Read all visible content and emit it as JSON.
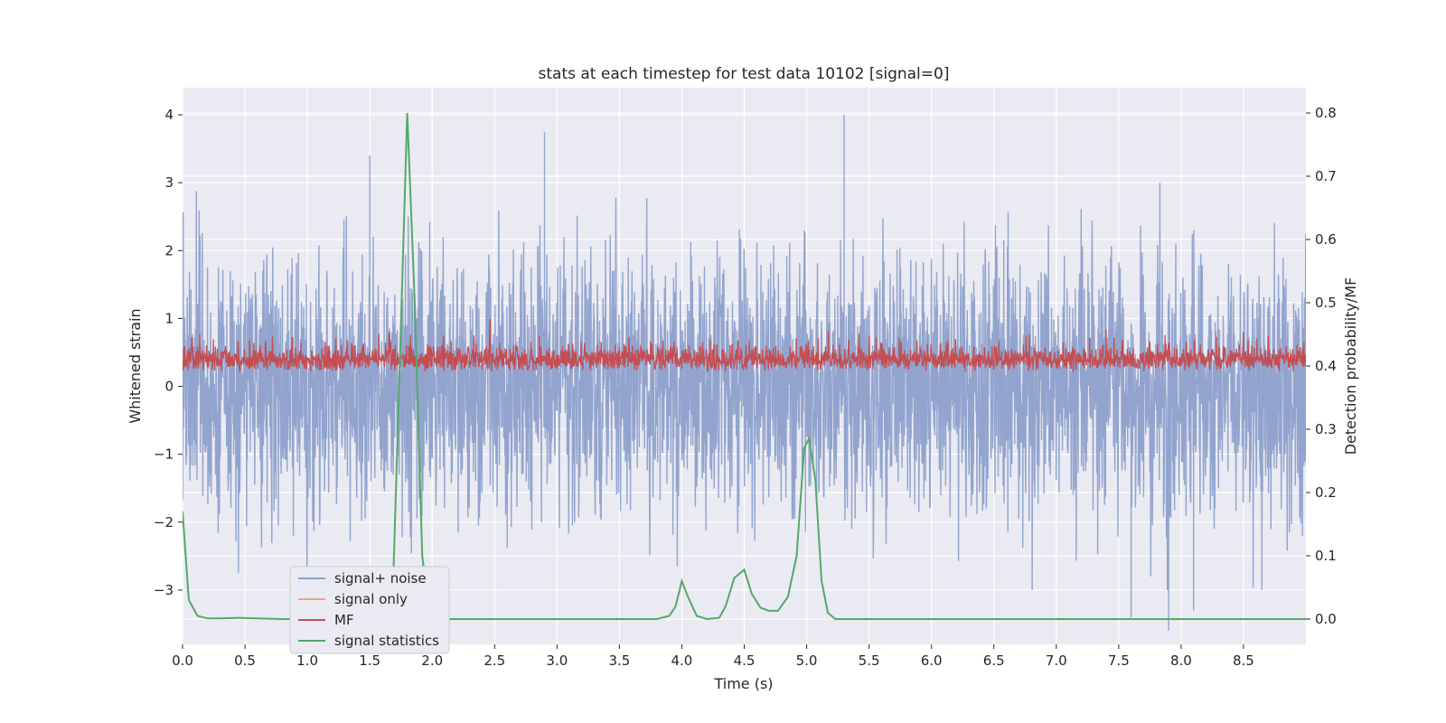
{
  "chart_data": {
    "type": "line",
    "title": "stats at each timestep for test data 10102 [signal=0]",
    "xlabel": "Time (s)",
    "ylabel_left": "Whitened strain",
    "ylabel_right": "Detection probability/MF",
    "xlim": [
      0.0,
      9.0
    ],
    "ylim_left": [
      -3.8,
      4.4
    ],
    "ylim_right": [
      -0.04,
      0.84
    ],
    "x_ticks": [
      "0.0",
      "0.5",
      "1.0",
      "1.5",
      "2.0",
      "2.5",
      "3.0",
      "3.5",
      "4.0",
      "4.5",
      "5.0",
      "5.5",
      "6.0",
      "6.5",
      "7.0",
      "7.5",
      "8.0",
      "8.5"
    ],
    "y_ticks_left": [
      "4",
      "3",
      "2",
      "1",
      "0",
      "−1",
      "−2",
      "−3"
    ],
    "y_ticks_right": [
      "0.8",
      "0.7",
      "0.6",
      "0.5",
      "0.4",
      "0.3",
      "0.2",
      "0.1",
      "0.0"
    ],
    "grid": true,
    "legend_placement": "lower-left",
    "series": [
      {
        "name": "signal+ noise",
        "axis": "left",
        "color": "#8da0cb",
        "style": "dense noise, roughly within ±2.5 with peaks near 4.0 and −3.5",
        "peaks": [
          [
            1.5,
            3.4
          ],
          [
            2.9,
            3.75
          ],
          [
            5.3,
            4.0
          ],
          [
            7.9,
            -3.6
          ],
          [
            8.1,
            -3.3
          ],
          [
            7.6,
            -3.4
          ]
        ]
      },
      {
        "name": "signal only",
        "axis": "left",
        "color": "#e8a58a",
        "values": []
      },
      {
        "name": "MF",
        "axis": "right",
        "color": "#c44e52",
        "style": "noise band mostly between 0.39 and 0.44, occasional peaks up to ~0.47"
      },
      {
        "name": "signal statistics",
        "axis": "right",
        "color": "#55a868",
        "x": [
          0.0,
          0.05,
          0.12,
          0.2,
          0.3,
          0.45,
          0.6,
          0.8,
          1.0,
          1.2,
          1.4,
          1.6,
          1.68,
          1.74,
          1.8,
          1.86,
          1.92,
          1.98,
          2.05,
          2.2,
          2.5,
          3.0,
          3.5,
          3.8,
          3.9,
          3.95,
          4.0,
          4.05,
          4.12,
          4.2,
          4.3,
          4.35,
          4.42,
          4.5,
          4.56,
          4.63,
          4.7,
          4.77,
          4.85,
          4.92,
          4.98,
          5.02,
          5.07,
          5.12,
          5.17,
          5.23,
          5.3,
          5.5,
          6.0,
          7.0,
          8.0,
          9.0
        ],
        "y": [
          0.17,
          0.03,
          0.005,
          0.001,
          0.001,
          0.002,
          0.001,
          0.0,
          0.0,
          0.0,
          0.0,
          0.0,
          0.01,
          0.4,
          0.8,
          0.5,
          0.1,
          0.005,
          0.0,
          0.0,
          0.0,
          0.0,
          0.0,
          0.0,
          0.005,
          0.02,
          0.06,
          0.035,
          0.005,
          0.0,
          0.002,
          0.02,
          0.065,
          0.078,
          0.04,
          0.018,
          0.013,
          0.013,
          0.035,
          0.1,
          0.27,
          0.286,
          0.22,
          0.06,
          0.01,
          0.0,
          0.0,
          0.0,
          0.0,
          0.0,
          0.0,
          0.0
        ]
      }
    ]
  }
}
